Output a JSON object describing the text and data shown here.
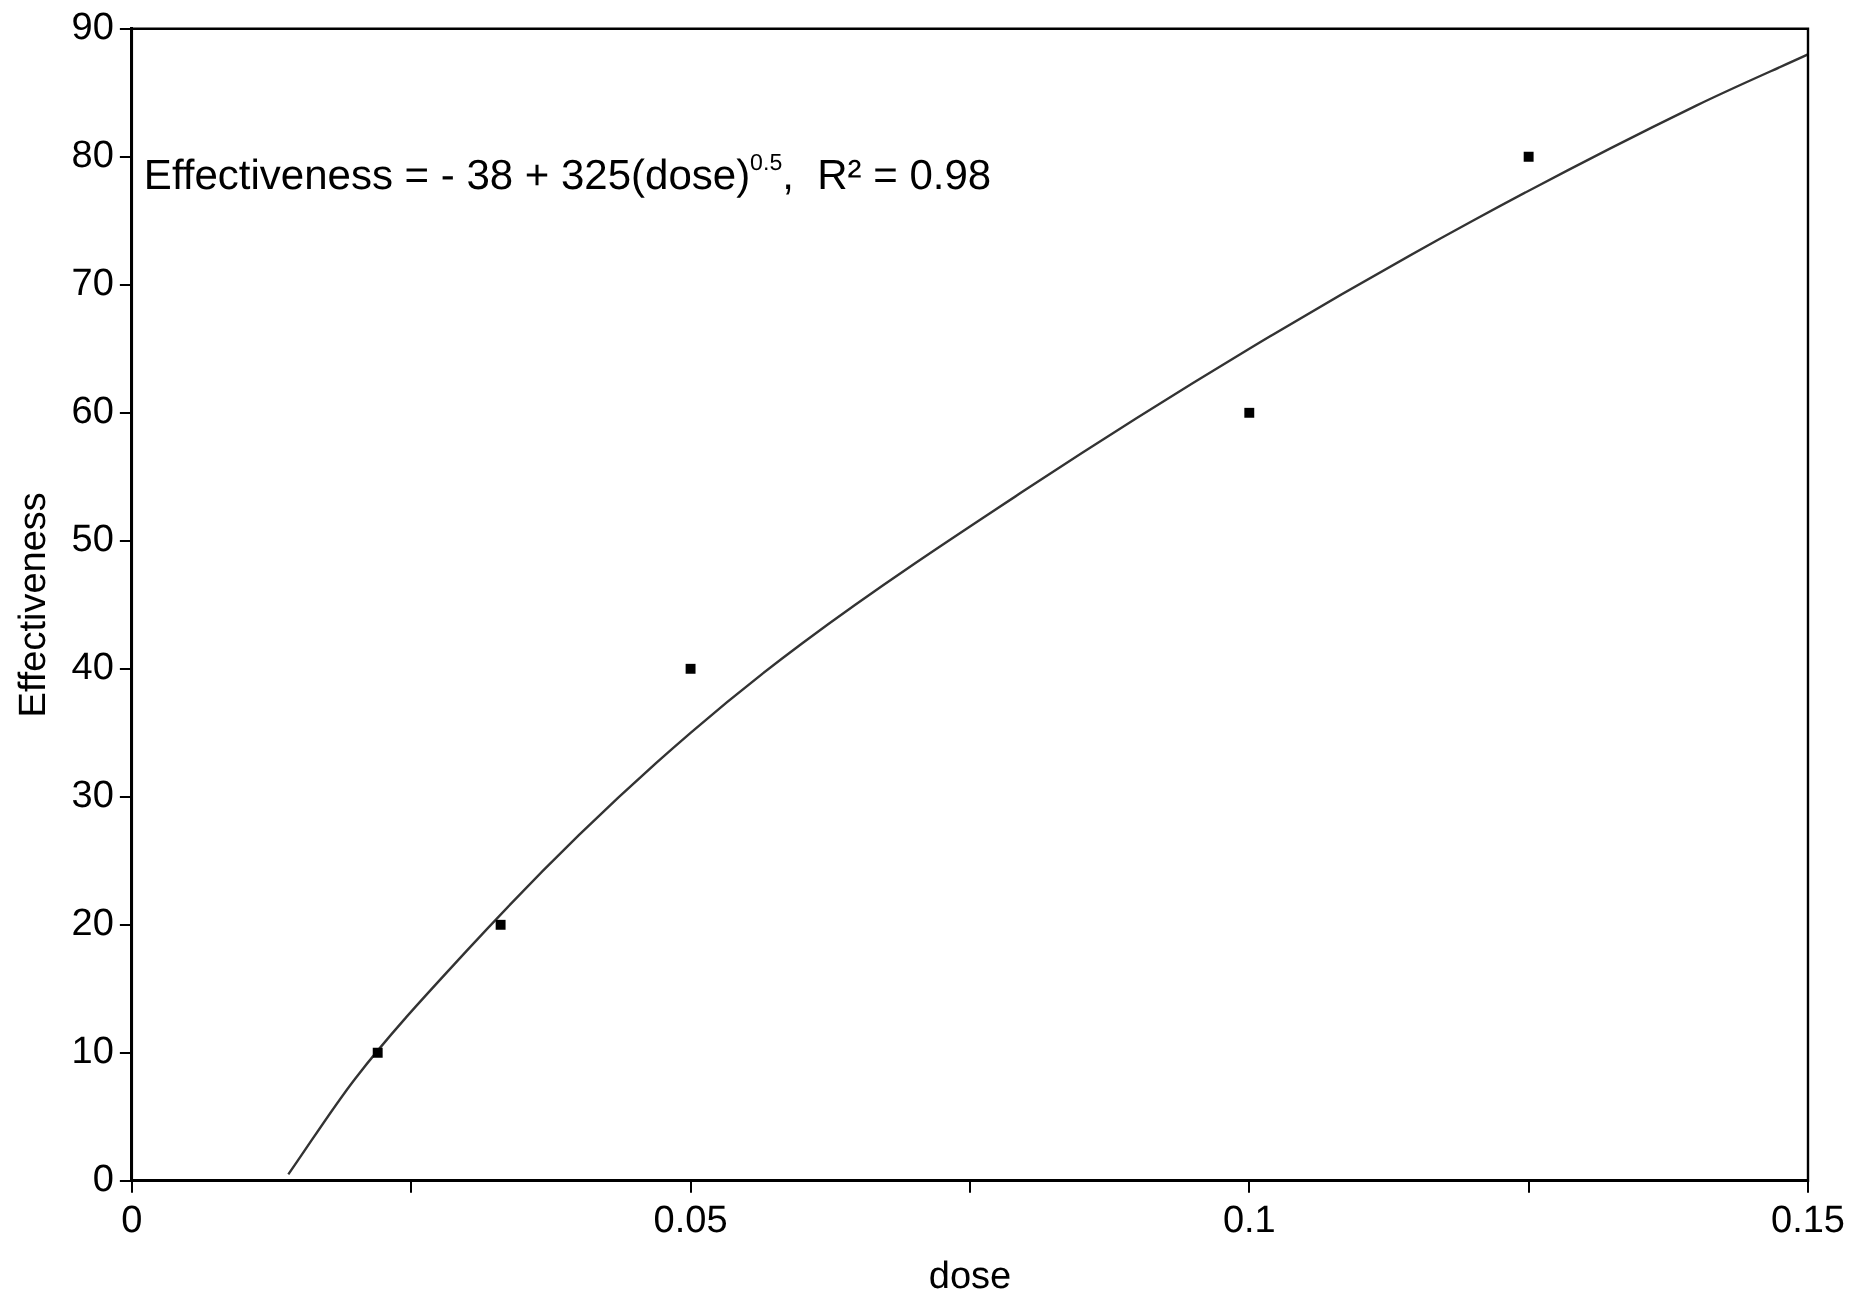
{
  "chart_data": {
    "type": "scatter",
    "xlabel": "dose",
    "ylabel": "Effectiveness",
    "x": [
      0.022,
      0.033,
      0.05,
      0.1,
      0.125
    ],
    "values": [
      10,
      20,
      40,
      60,
      80
    ],
    "color": "#000000",
    "marker": "square",
    "series": [
      {
        "type": "line",
        "color": "#333333",
        "line_style": "solid",
        "marker": "none",
        "x": [
          0.014,
          0.02,
          0.03,
          0.04,
          0.05,
          0.06,
          0.08,
          0.1,
          0.12,
          0.14,
          0.15
        ],
        "values": [
          0.5,
          8,
          18,
          27,
          35,
          42,
          54,
          65,
          75,
          84,
          88
        ]
      }
    ],
    "annotations": [
      "Effectiveness = - 38 + 325(dose)$^{0.5}$,  R² = 0.98"
    ],
    "xlim": [
      0,
      0.15
    ],
    "xticks": [
      0,
      {
        "value": 0.025,
        "label": null
      },
      0.05,
      {
        "value": 0.075,
        "label": null
      },
      0.1,
      {
        "value": 0.125,
        "label": null
      },
      0.15
    ],
    "ylim": [
      0,
      90
    ],
    "yticks": [
      0,
      10,
      20,
      30,
      40,
      50,
      60,
      70,
      80,
      90
    ],
    "grid": false,
    "legend": false
  }
}
